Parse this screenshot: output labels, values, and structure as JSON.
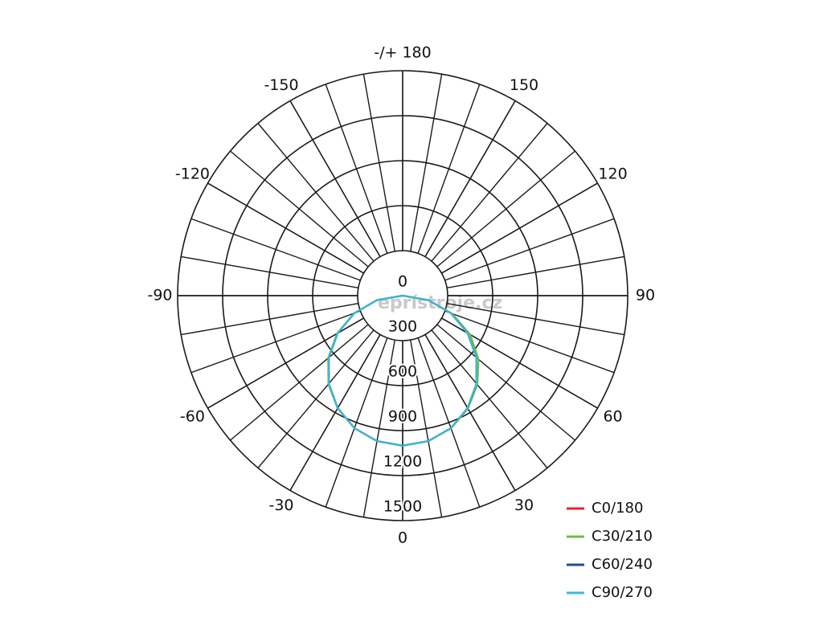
{
  "chart_data": {
    "type": "polar",
    "x": [
      -90,
      -80,
      -70,
      -60,
      -50,
      -40,
      -30,
      -20,
      -10,
      0,
      10,
      20,
      30,
      40,
      50,
      60,
      70,
      80,
      90
    ],
    "series": [
      {
        "name": "C0/180",
        "color": "#e3262b",
        "values": [
          0,
          174,
          342,
          500,
          643,
          766,
          866,
          940,
          985,
          1000,
          985,
          940,
          866,
          766,
          643,
          500,
          342,
          174,
          0
        ]
      },
      {
        "name": "C30/210",
        "color": "#6cbf3f",
        "values": [
          0,
          176,
          345,
          505,
          648,
          770,
          868,
          940,
          985,
          1000,
          985,
          942,
          870,
          775,
          660,
          520,
          352,
          178,
          0
        ]
      },
      {
        "name": "C60/240",
        "color": "#1f4e8c",
        "values": [
          0,
          174,
          342,
          500,
          643,
          766,
          866,
          940,
          985,
          1000,
          985,
          940,
          866,
          766,
          643,
          500,
          342,
          174,
          0
        ]
      },
      {
        "name": "C90/270",
        "color": "#3bb8d8",
        "values": [
          0,
          174,
          342,
          500,
          643,
          766,
          866,
          940,
          985,
          1000,
          985,
          940,
          866,
          766,
          643,
          500,
          342,
          174,
          0
        ]
      }
    ],
    "rlim": [
      0,
      1500
    ],
    "rticks": [
      0,
      300,
      600,
      900,
      1200,
      1500
    ],
    "angle_ticks": [
      -150,
      -120,
      -90,
      -60,
      -30,
      0,
      30,
      60,
      90,
      120,
      150,
      {
        "value": 180,
        "label": "-/+ 180"
      }
    ],
    "watermark": "eprístroje.cz",
    "legend": "bottom-right"
  }
}
